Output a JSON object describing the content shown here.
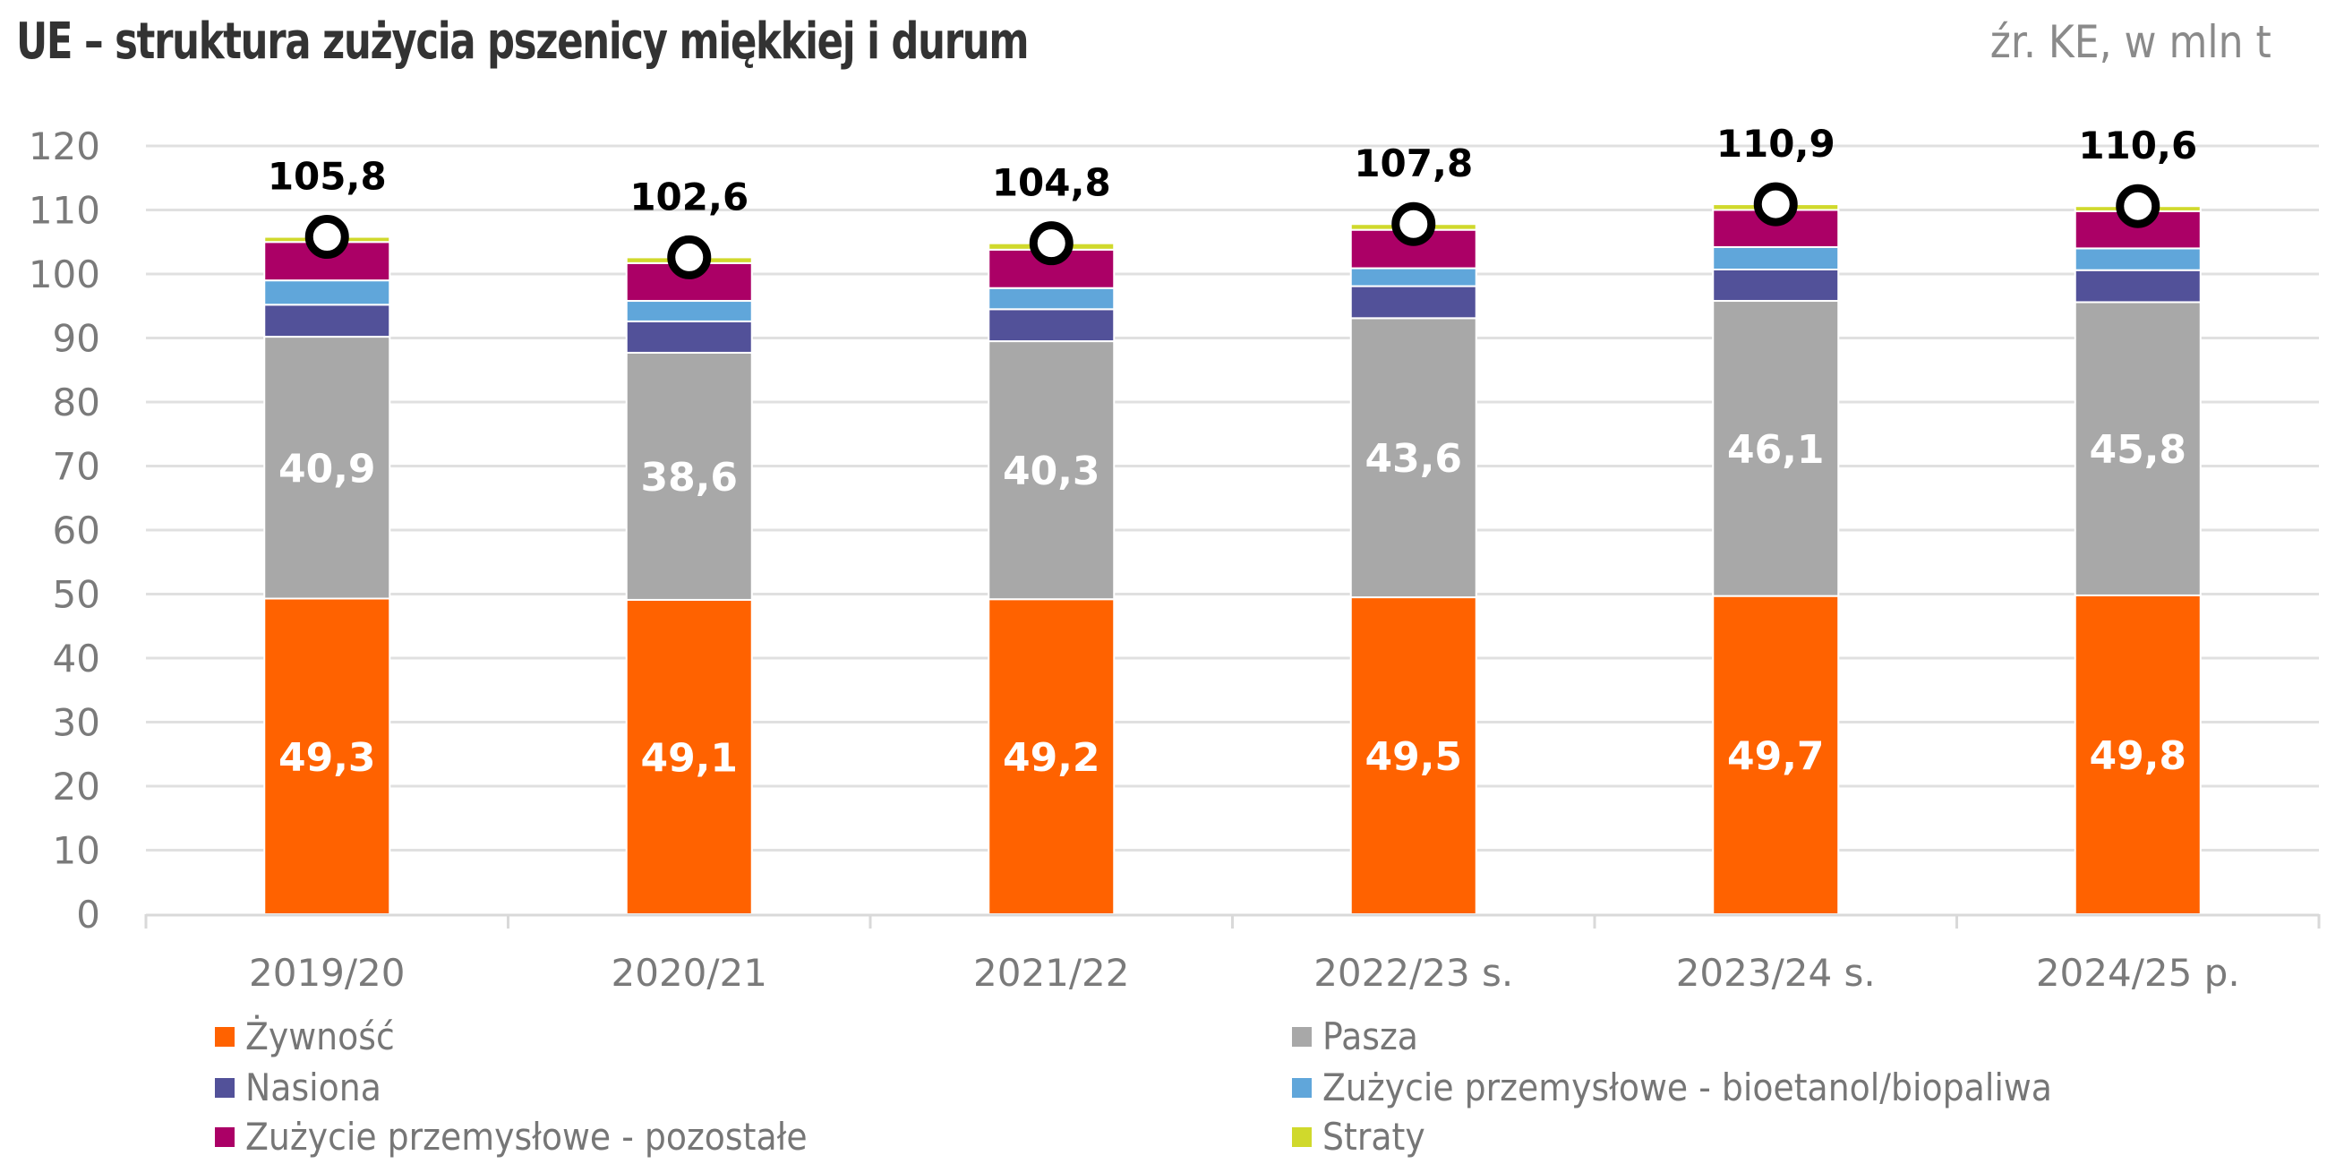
{
  "header": {
    "title": "UE – struktura zużycia pszenicy miękkiej i durum",
    "source": "źr. KE, w mln t"
  },
  "chart_data": {
    "type": "bar",
    "stacked": true,
    "title": "UE – struktura zużycia pszenicy miękkiej i durum",
    "subtitle": "źr. KE, w mln t",
    "xlabel": "",
    "ylabel": "",
    "ylim": [
      0,
      120
    ],
    "yticks": [
      0,
      10,
      20,
      30,
      40,
      50,
      60,
      70,
      80,
      90,
      100,
      110,
      120
    ],
    "grid": true,
    "legend_position": "bottom",
    "categories": [
      "2019/20",
      "2020/21",
      "2021/22",
      "2022/23 s.",
      "2023/24 s.",
      "2024/25 p."
    ],
    "series": [
      {
        "name": "Żywność",
        "color": "#ff6200",
        "values": [
          49.3,
          49.1,
          49.2,
          49.5,
          49.7,
          49.8
        ],
        "labels": [
          "49,3",
          "49,1",
          "49,2",
          "49,5",
          "49,7",
          "49,8"
        ]
      },
      {
        "name": "Pasza",
        "color": "#a8a8a8",
        "values": [
          40.9,
          38.6,
          40.3,
          43.6,
          46.1,
          45.8
        ],
        "labels": [
          "40,9",
          "38,6",
          "40,3",
          "43,6",
          "46,1",
          "45,8"
        ]
      },
      {
        "name": "Nasiona",
        "color": "#525199",
        "values": [
          5.0,
          4.9,
          5.0,
          5.0,
          4.9,
          5.0
        ]
      },
      {
        "name": "Zużycie przemysłowe - bioetanol/biopaliwa",
        "color": "#60a6da",
        "values": [
          3.8,
          3.2,
          3.3,
          2.8,
          3.5,
          3.4
        ]
      },
      {
        "name": "Zużycie przemysłowe - pozostałe",
        "color": "#ab0066",
        "values": [
          6.0,
          5.9,
          6.0,
          6.0,
          5.8,
          5.8
        ]
      },
      {
        "name": "Straty",
        "color": "#d0d92c",
        "values": [
          0.8,
          0.9,
          1.0,
          0.9,
          0.9,
          0.8
        ]
      }
    ],
    "totals": {
      "values": [
        105.8,
        102.6,
        104.8,
        107.8,
        110.9,
        110.6
      ],
      "labels": [
        "105,8",
        "102,6",
        "104,8",
        "107,8",
        "110,9",
        "110,6"
      ]
    }
  },
  "legend": {
    "items": [
      {
        "label": "Żywność",
        "color": "#ff6200"
      },
      {
        "label": "Pasza",
        "color": "#a8a8a8"
      },
      {
        "label": "Nasiona",
        "color": "#525199"
      },
      {
        "label": "Zużycie przemysłowe - bioetanol/biopaliwa",
        "color": "#60a6da"
      },
      {
        "label": "Zużycie przemysłowe - pozostałe",
        "color": "#ab0066"
      },
      {
        "label": "Straty",
        "color": "#d0d92c"
      }
    ]
  }
}
